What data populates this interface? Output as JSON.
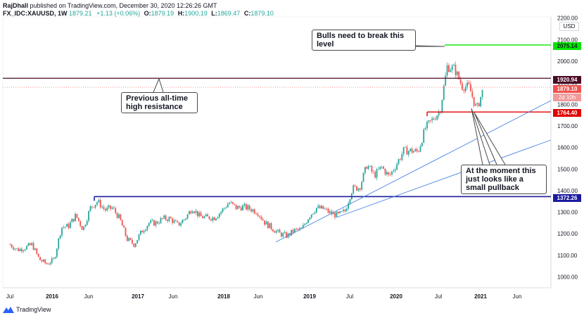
{
  "header": {
    "author": "RajDhall",
    "published": "published on TradingView.com, December 30, 2020 12:26:26 GMT",
    "symbol": "FX_IDC:XAUUSD, 1W",
    "o_label": "O:",
    "o_value": "1879.19",
    "h_label": "H:",
    "h_value": "1900.19",
    "l_label": "L:",
    "l_value": "1869.47",
    "c_label": "C:",
    "c_value": "1879.10",
    "last": "1879.21",
    "change": "+1.13 (+0.06%)"
  },
  "footer": {
    "brand": "TradingView"
  },
  "colors": {
    "up": "#26a69a",
    "down": "#ef5350",
    "green_line": "#00e600",
    "red_line": "#e00000",
    "maroon_line": "#4a0a24",
    "blue_line": "#1a1aa0",
    "trend_line": "#4a84e0"
  },
  "annotations": {
    "bulls": "Bulls need to break this level",
    "previous": "Previous all-time high resistance",
    "pullback": "At the moment this just looks like a small pullback"
  },
  "chart_data": {
    "type": "candlestick",
    "currency": "USD",
    "x_ticks": [
      "Jul",
      "2016",
      "Jun",
      "2017",
      "Jun",
      "2018",
      "Jun",
      "2019",
      "Jul",
      "2020",
      "Jul",
      "2021",
      "Jun"
    ],
    "y_ticks": [
      "1000.00",
      "1100.00",
      "1200.00",
      "1300.00",
      "1400.00",
      "1500.00",
      "1600.00",
      "1700.00",
      "1800.00",
      "1900.00",
      "2000.00",
      "2100.00",
      "2200.00"
    ],
    "ylim": [
      950,
      2200
    ],
    "levels": [
      {
        "value": "2075.14",
        "kind": "resistance"
      },
      {
        "value": "1920.94",
        "kind": "previous-ath"
      },
      {
        "value": "1879.10",
        "kind": "last"
      },
      {
        "value": "1764.40",
        "kind": "support"
      },
      {
        "value": "1372.26",
        "kind": "breakout"
      }
    ],
    "countdown": "2d 10h",
    "close_path": [
      [
        "2015-07",
        1150
      ],
      [
        "2015-08",
        1125
      ],
      [
        "2015-09",
        1135
      ],
      [
        "2015-10",
        1150
      ],
      [
        "2015-11",
        1080
      ],
      [
        "2015-12",
        1060
      ],
      [
        "2016-01",
        1080
      ],
      [
        "2016-02",
        1230
      ],
      [
        "2016-03",
        1235
      ],
      [
        "2016-04",
        1285
      ],
      [
        "2016-05",
        1220
      ],
      [
        "2016-06",
        1320
      ],
      [
        "2016-07",
        1350
      ],
      [
        "2016-08",
        1310
      ],
      [
        "2016-09",
        1320
      ],
      [
        "2016-10",
        1270
      ],
      [
        "2016-11",
        1175
      ],
      [
        "2016-12",
        1150
      ],
      [
        "2017-01",
        1210
      ],
      [
        "2017-02",
        1250
      ],
      [
        "2017-03",
        1250
      ],
      [
        "2017-04",
        1270
      ],
      [
        "2017-05",
        1270
      ],
      [
        "2017-06",
        1240
      ],
      [
        "2017-07",
        1270
      ],
      [
        "2017-08",
        1320
      ],
      [
        "2017-09",
        1280
      ],
      [
        "2017-10",
        1275
      ],
      [
        "2017-11",
        1275
      ],
      [
        "2017-12",
        1305
      ],
      [
        "2018-01",
        1345
      ],
      [
        "2018-02",
        1320
      ],
      [
        "2018-03",
        1325
      ],
      [
        "2018-04",
        1315
      ],
      [
        "2018-05",
        1300
      ],
      [
        "2018-06",
        1250
      ],
      [
        "2018-07",
        1225
      ],
      [
        "2018-08",
        1200
      ],
      [
        "2018-09",
        1190
      ],
      [
        "2018-10",
        1215
      ],
      [
        "2018-11",
        1220
      ],
      [
        "2018-12",
        1280
      ],
      [
        "2019-01",
        1320
      ],
      [
        "2019-02",
        1315
      ],
      [
        "2019-03",
        1295
      ],
      [
        "2019-04",
        1285
      ],
      [
        "2019-05",
        1305
      ],
      [
        "2019-06",
        1410
      ],
      [
        "2019-07",
        1415
      ],
      [
        "2019-08",
        1520
      ],
      [
        "2019-09",
        1470
      ],
      [
        "2019-10",
        1510
      ],
      [
        "2019-11",
        1465
      ],
      [
        "2019-12",
        1520
      ],
      [
        "2020-01",
        1585
      ],
      [
        "2020-02",
        1585
      ],
      [
        "2020-03",
        1580
      ],
      [
        "2020-04",
        1690
      ],
      [
        "2020-05",
        1730
      ],
      [
        "2020-06",
        1770
      ],
      [
        "2020-07",
        1975
      ],
      [
        "2020-08",
        1965
      ],
      [
        "2020-09",
        1885
      ],
      [
        "2020-10",
        1880
      ],
      [
        "2020-11",
        1775
      ],
      [
        "2020-12",
        1879
      ]
    ]
  }
}
